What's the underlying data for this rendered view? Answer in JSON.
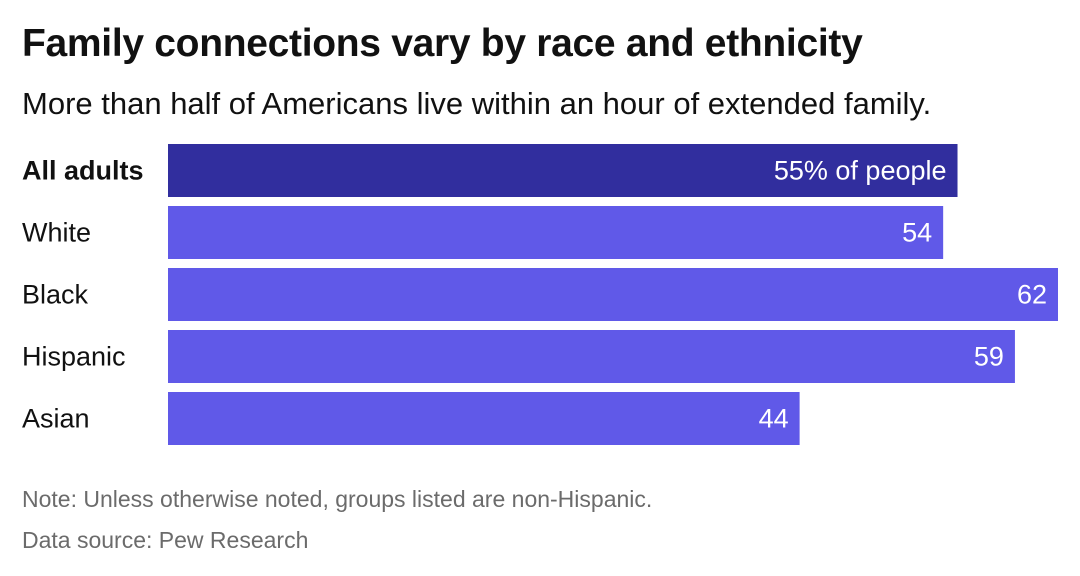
{
  "chart_data": {
    "type": "bar",
    "orientation": "horizontal",
    "title": "Family connections vary by race and ethnicity",
    "subtitle": "More than half of Americans live within an hour of extended family.",
    "categories": [
      "All adults",
      "White",
      "Black",
      "Hispanic",
      "Asian"
    ],
    "values": [
      55,
      54,
      62,
      59,
      44
    ],
    "value_labels": [
      "55% of people",
      "54",
      "62",
      "59",
      "44"
    ],
    "highlight_index": 0,
    "xlim": [
      0,
      62
    ],
    "xlabel": "",
    "ylabel": "",
    "grid": false,
    "legend": "none",
    "colors": {
      "highlight": "#312e9e",
      "bar": "#6059e8",
      "label_text": "#ffffff"
    }
  },
  "footer": {
    "note": "Note: Unless otherwise noted, groups listed are non-Hispanic.",
    "source": "Data source: Pew Research"
  }
}
